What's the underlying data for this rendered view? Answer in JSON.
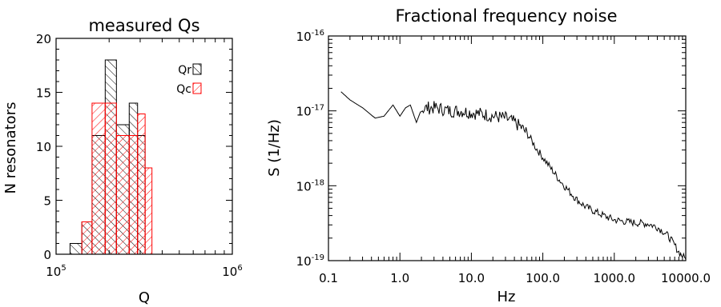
{
  "chart_data": [
    {
      "type": "histogram",
      "title": "measured Qs",
      "xlabel": "Q",
      "ylabel": "N resonators",
      "xscale": "log",
      "xlim": [
        100000,
        1000000
      ],
      "ylim": [
        0,
        20
      ],
      "x_tick_labels": [
        {
          "base": "10",
          "exp": "5"
        },
        {
          "base": "10",
          "exp": "6"
        }
      ],
      "y_tick_labels": [
        "0",
        "5",
        "10",
        "15",
        "20"
      ],
      "legend_position": "top-right",
      "series": [
        {
          "name": "Qr",
          "color": "#000000",
          "hatch": "diagonal",
          "bins": [
            {
              "lo": 120000,
              "hi": 140000,
              "count": 1
            },
            {
              "lo": 140000,
              "hi": 160000,
              "count": 3
            },
            {
              "lo": 160000,
              "hi": 190000,
              "count": 11
            },
            {
              "lo": 190000,
              "hi": 220000,
              "count": 18
            },
            {
              "lo": 220000,
              "hi": 260000,
              "count": 12
            },
            {
              "lo": 260000,
              "hi": 290000,
              "count": 14
            },
            {
              "lo": 290000,
              "hi": 320000,
              "count": 11
            }
          ]
        },
        {
          "name": "Qc",
          "color": "#ff0000",
          "hatch": "diagonal",
          "bins": [
            {
              "lo": 140000,
              "hi": 160000,
              "count": 3
            },
            {
              "lo": 160000,
              "hi": 190000,
              "count": 14
            },
            {
              "lo": 190000,
              "hi": 220000,
              "count": 14
            },
            {
              "lo": 220000,
              "hi": 260000,
              "count": 11
            },
            {
              "lo": 260000,
              "hi": 290000,
              "count": 11
            },
            {
              "lo": 290000,
              "hi": 320000,
              "count": 13
            },
            {
              "lo": 320000,
              "hi": 350000,
              "count": 8
            }
          ]
        }
      ]
    },
    {
      "type": "line",
      "title": "Fractional frequency noise",
      "xlabel": "Hz",
      "ylabel": "S (1/Hz)",
      "xscale": "log",
      "yscale": "log",
      "xlim": [
        0.1,
        10000
      ],
      "ylim": [
        1e-19,
        1e-16
      ],
      "x_tick_labels": [
        "0.1",
        "1.0",
        "10.0",
        "100.0",
        "1000.0",
        "10000.0"
      ],
      "y_tick_labels": [
        {
          "base": "10",
          "exp": "-19"
        },
        {
          "base": "10",
          "exp": "-18"
        },
        {
          "base": "10",
          "exp": "-17"
        },
        {
          "base": "10",
          "exp": "-16"
        }
      ],
      "series": [
        {
          "color": "#000000",
          "x": [
            0.15,
            0.2,
            0.3,
            0.45,
            0.6,
            0.8,
            1.0,
            1.2,
            1.4,
            1.7,
            2.0,
            2.5,
            3.0,
            4.0,
            5.0,
            7.0,
            10.0,
            15.0,
            20.0,
            30.0,
            40.0,
            50.0,
            60.0,
            70.0,
            80.0,
            100.0,
            130.0,
            170.0,
            220.0,
            300.0,
            400.0,
            600.0,
            800.0,
            1000.0,
            1500.0,
            2000.0,
            3000.0,
            4000.0,
            5000.0,
            6000.0,
            7000.0,
            8000.0,
            9000.0,
            10000.0
          ],
          "y": [
            1.8e-17,
            1.4e-17,
            1.1e-17,
            8e-18,
            8.5e-18,
            1.2e-17,
            8.5e-18,
            1.1e-17,
            1.2e-17,
            7e-18,
            1.05e-17,
            1.1e-17,
            1.1e-17,
            1.05e-17,
            1e-17,
            1e-17,
            9.5e-18,
            9e-18,
            8.5e-18,
            8e-18,
            7e-18,
            6e-18,
            5e-18,
            4e-18,
            3.2e-18,
            2.4e-18,
            1.7e-18,
            1.2e-18,
            9e-19,
            6.5e-19,
            5.2e-19,
            4.3e-19,
            3.8e-19,
            3.5e-19,
            3.3e-19,
            3.2e-19,
            3.1e-19,
            2.8e-19,
            2.4e-19,
            2e-19,
            1.6e-19,
            1.3e-19,
            1.15e-19,
            1.05e-19
          ]
        }
      ]
    }
  ]
}
